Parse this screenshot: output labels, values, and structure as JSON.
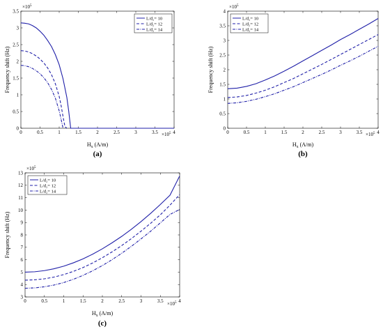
{
  "colors": {
    "series": "#1f1fa8",
    "axis": "#000000",
    "background": "#ffffff"
  },
  "chart_data": [
    {
      "type": "line",
      "panel_label": "(a)",
      "xlabel": "H",
      "xlabel_sub": "x",
      "xlabel_unit": "(A/m)",
      "ylabel": "Frequency shift (Hz)",
      "xlim": [
        0,
        4
      ],
      "ylim": [
        0,
        3.5
      ],
      "x_exponent": "×10",
      "x_exponent_power": "5",
      "y_exponent": "×10",
      "y_exponent_power": "5",
      "x_ticks": [
        "0",
        "0.5",
        "1",
        "1.5",
        "2",
        "2.5",
        "3",
        "3.5",
        "4"
      ],
      "y_ticks": [
        "0",
        "0.5",
        "1",
        "1.5",
        "2",
        "2.5",
        "3",
        "3.5"
      ],
      "legend_position": "top-right",
      "grid": false,
      "series": [
        {
          "name": "L/d₂= 10",
          "style": "solid",
          "x": [
            0,
            0.1,
            0.2,
            0.3,
            0.4,
            0.5,
            0.6,
            0.7,
            0.8,
            0.9,
            1.0,
            1.1,
            1.15,
            1.2,
            1.25,
            1.3,
            1.35,
            1.5,
            2.0,
            2.5,
            3.0,
            3.5,
            4.0
          ],
          "y": [
            3.15,
            3.14,
            3.12,
            3.07,
            3.0,
            2.9,
            2.78,
            2.62,
            2.44,
            2.2,
            1.9,
            1.48,
            1.2,
            0.92,
            0.5,
            0.0,
            0.0,
            0.0,
            0.0,
            0.0,
            0.0,
            0.0,
            0.0
          ]
        },
        {
          "name": "L/d₂= 12",
          "style": "dashed",
          "x": [
            0,
            0.1,
            0.2,
            0.3,
            0.4,
            0.5,
            0.6,
            0.7,
            0.8,
            0.9,
            1.0,
            1.05,
            1.1,
            1.15,
            1.2
          ],
          "y": [
            2.32,
            2.31,
            2.28,
            2.23,
            2.16,
            2.07,
            1.95,
            1.8,
            1.6,
            1.33,
            0.95,
            0.68,
            0.35,
            0.05,
            0.0
          ]
        },
        {
          "name": "L/d₂= 14",
          "style": "dashdot",
          "x": [
            0,
            0.1,
            0.2,
            0.3,
            0.4,
            0.5,
            0.6,
            0.7,
            0.8,
            0.9,
            1.0,
            1.05,
            1.1
          ],
          "y": [
            1.88,
            1.87,
            1.84,
            1.79,
            1.72,
            1.63,
            1.51,
            1.36,
            1.16,
            0.9,
            0.52,
            0.27,
            0.0
          ]
        }
      ]
    },
    {
      "type": "line",
      "panel_label": "(b)",
      "xlabel": "H",
      "xlabel_sub": "x",
      "xlabel_unit": "(A/m)",
      "ylabel": "Frequency shift (Hz)",
      "xlim": [
        0,
        4
      ],
      "ylim": [
        0,
        4
      ],
      "x_exponent": "×10",
      "x_exponent_power": "5",
      "y_exponent": "×10",
      "y_exponent_power": "5",
      "x_ticks": [
        "0",
        "0.5",
        "1",
        "1.5",
        "2",
        "2.5",
        "3",
        "3.5",
        "4"
      ],
      "y_ticks": [
        "0",
        "0.5",
        "1",
        "1.5",
        "2",
        "2.5",
        "3",
        "3.5",
        "4"
      ],
      "legend_position": "top-left",
      "grid": false,
      "series": [
        {
          "name": "L/d₂= 10",
          "style": "solid",
          "x": [
            0,
            0.25,
            0.5,
            0.75,
            1.0,
            1.25,
            1.5,
            1.75,
            2.0,
            2.25,
            2.5,
            2.75,
            3.0,
            3.25,
            3.5,
            3.75,
            4.0
          ],
          "y": [
            1.35,
            1.37,
            1.43,
            1.52,
            1.65,
            1.79,
            1.95,
            2.12,
            2.3,
            2.48,
            2.66,
            2.84,
            3.03,
            3.2,
            3.38,
            3.56,
            3.75
          ]
        },
        {
          "name": "L/d₂= 12",
          "style": "dashed",
          "x": [
            0,
            0.25,
            0.5,
            0.75,
            1.0,
            1.25,
            1.5,
            1.75,
            2.0,
            2.25,
            2.5,
            2.75,
            3.0,
            3.25,
            3.5,
            3.75,
            4.0
          ],
          "y": [
            1.05,
            1.07,
            1.12,
            1.2,
            1.3,
            1.42,
            1.56,
            1.7,
            1.86,
            2.02,
            2.18,
            2.35,
            2.52,
            2.69,
            2.86,
            3.03,
            3.2
          ]
        },
        {
          "name": "L/d₂= 14",
          "style": "dashdot",
          "x": [
            0,
            0.25,
            0.5,
            0.75,
            1.0,
            1.25,
            1.5,
            1.75,
            2.0,
            2.25,
            2.5,
            2.75,
            3.0,
            3.25,
            3.5,
            3.75,
            4.0
          ],
          "y": [
            0.85,
            0.87,
            0.92,
            0.99,
            1.08,
            1.18,
            1.3,
            1.42,
            1.56,
            1.7,
            1.84,
            1.99,
            2.15,
            2.3,
            2.46,
            2.63,
            2.8
          ]
        }
      ]
    },
    {
      "type": "line",
      "panel_label": "(c)",
      "xlabel": "H",
      "xlabel_sub": "x",
      "xlabel_unit": "(A/m)",
      "ylabel": "Frequency shift (Hz)",
      "xlim": [
        0,
        4
      ],
      "ylim": [
        3,
        13
      ],
      "x_exponent": "×10",
      "x_exponent_power": "5",
      "y_exponent": "×10",
      "y_exponent_power": "5",
      "x_ticks": [
        "0",
        "0.5",
        "1",
        "1.5",
        "2",
        "2.5",
        "3",
        "3.5",
        "4"
      ],
      "y_ticks": [
        "3",
        "4",
        "5",
        "6",
        "7",
        "8",
        "9",
        "10",
        "11",
        "12",
        "13"
      ],
      "legend_position": "top-left",
      "grid": false,
      "series": [
        {
          "name": "L/d₂= 10",
          "style": "solid",
          "x": [
            0,
            0.25,
            0.5,
            0.75,
            1.0,
            1.25,
            1.5,
            1.75,
            2.0,
            2.25,
            2.5,
            2.75,
            3.0,
            3.25,
            3.5,
            3.75,
            4.0
          ],
          "y": [
            5.0,
            5.03,
            5.12,
            5.27,
            5.48,
            5.75,
            6.07,
            6.45,
            6.88,
            7.36,
            7.88,
            8.45,
            9.07,
            9.74,
            10.45,
            11.2,
            12.75
          ]
        },
        {
          "name": "L/d₂= 12",
          "style": "dashed",
          "x": [
            0,
            0.25,
            0.5,
            0.75,
            1.0,
            1.25,
            1.5,
            1.75,
            2.0,
            2.25,
            2.5,
            2.75,
            3.0,
            3.25,
            3.5,
            3.75,
            4.0
          ],
          "y": [
            4.35,
            4.38,
            4.46,
            4.6,
            4.8,
            5.06,
            5.37,
            5.74,
            6.16,
            6.63,
            7.14,
            7.7,
            8.3,
            8.94,
            9.62,
            10.4,
            11.25
          ]
        },
        {
          "name": "L/d₂= 14",
          "style": "dashdot",
          "x": [
            0,
            0.25,
            0.5,
            0.75,
            1.0,
            1.25,
            1.5,
            1.75,
            2.0,
            2.25,
            2.5,
            2.75,
            3.0,
            3.25,
            3.5,
            3.75,
            4.0
          ],
          "y": [
            3.7,
            3.73,
            3.82,
            3.96,
            4.16,
            4.42,
            4.74,
            5.11,
            5.53,
            6.0,
            6.52,
            7.08,
            7.68,
            8.3,
            8.97,
            9.65,
            10.05
          ]
        }
      ]
    }
  ]
}
